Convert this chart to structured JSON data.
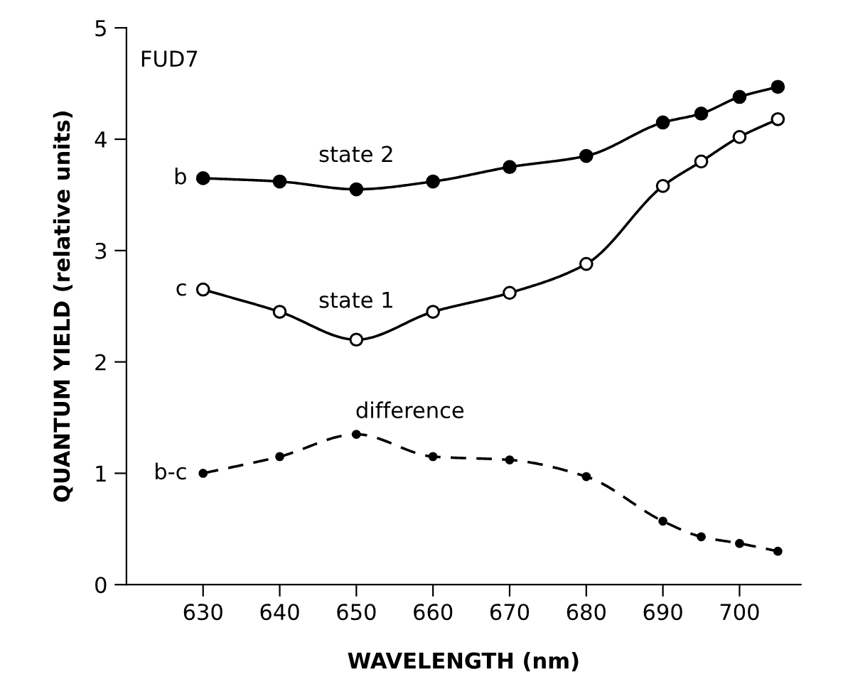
{
  "chart_data": {
    "type": "line",
    "xlabel": "WAVELENGTH (nm)",
    "ylabel": "QUANTUM YIELD (relative units)",
    "x": [
      630,
      640,
      650,
      660,
      670,
      680,
      690,
      695,
      700,
      705
    ],
    "series": [
      {
        "name": "state 2",
        "color": "#000000",
        "marker": "circle",
        "line_style": "solid",
        "values": [
          3.65,
          3.62,
          3.55,
          3.62,
          3.75,
          3.85,
          4.15,
          4.23,
          4.38,
          4.47
        ]
      },
      {
        "name": "state 1",
        "color": "#000000",
        "marker": "circle",
        "line_style": "solid",
        "values": [
          2.65,
          2.45,
          2.2,
          2.45,
          2.62,
          2.88,
          3.58,
          3.8,
          4.02,
          4.18
        ]
      },
      {
        "name": "difference",
        "color": "#000000",
        "marker": "circle",
        "line_style": "dashed",
        "values": [
          1.0,
          1.15,
          1.35,
          1.15,
          1.12,
          0.97,
          0.57,
          0.43,
          0.37,
          0.3
        ]
      }
    ],
    "annotations": [
      "FUD7",
      "b",
      "c",
      "b-c"
    ],
    "xlim": [
      620,
      708
    ],
    "ylim": [
      0,
      5
    ],
    "xticks": [
      630,
      640,
      650,
      660,
      670,
      680,
      690,
      700
    ],
    "yticks": [
      0,
      1,
      2,
      3,
      4,
      5
    ],
    "grid": false,
    "legend": false
  }
}
